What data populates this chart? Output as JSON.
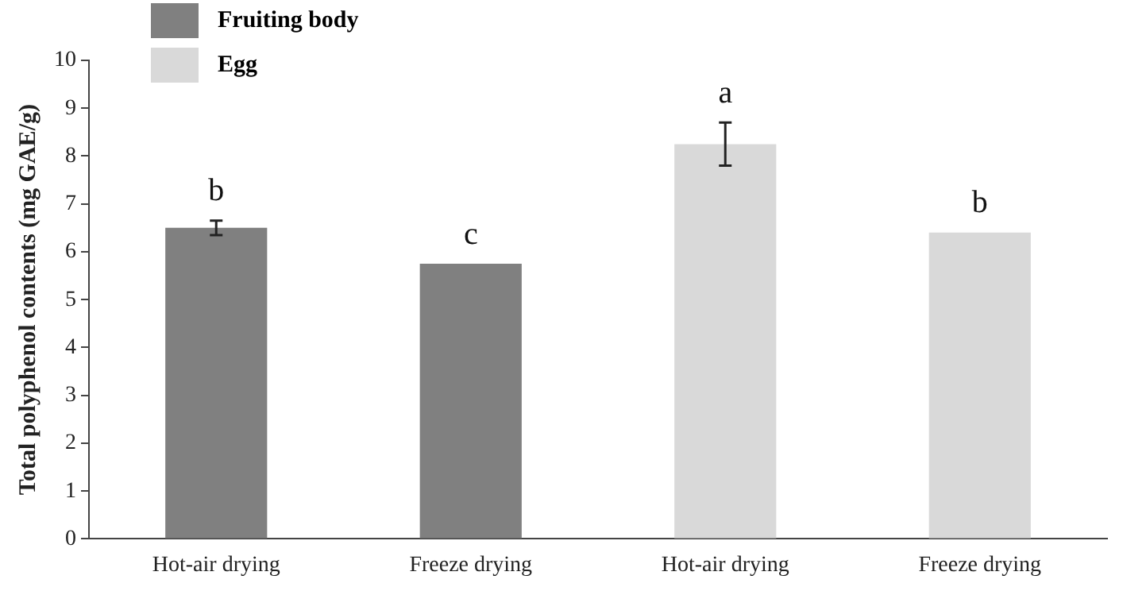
{
  "chart_data": {
    "type": "bar",
    "ylabel": "Total polyphenol contents (mg GAE/g)",
    "categories": [
      "Hot-air drying",
      "Freeze drying",
      "Hot-air drying",
      "Freeze drying"
    ],
    "series": [
      {
        "name": "Fruiting body",
        "color": "#808080",
        "values": [
          6.5,
          5.75,
          null,
          null
        ],
        "errors": [
          0.15,
          null,
          null,
          null
        ],
        "value_labels": [
          "b",
          "c",
          null,
          null
        ]
      },
      {
        "name": "Egg",
        "color": "#d9d9d9",
        "values": [
          null,
          null,
          8.25,
          6.4
        ],
        "errors": [
          null,
          null,
          0.45,
          null
        ],
        "value_labels": [
          null,
          null,
          "a",
          "b"
        ]
      }
    ],
    "ylim": [
      0,
      10
    ],
    "yticks": [
      0,
      1,
      2,
      3,
      4,
      5,
      6,
      7,
      8,
      9,
      10
    ],
    "grid": false,
    "legend": "top left"
  }
}
